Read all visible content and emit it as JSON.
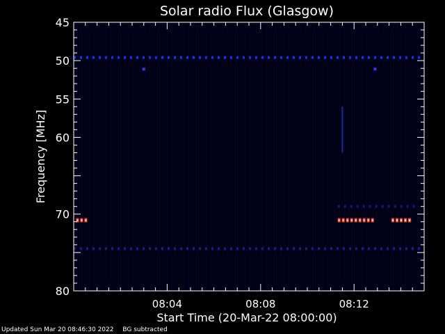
{
  "chart_data": {
    "type": "heatmap",
    "title": "Solar radio Flux (Glasgow)",
    "xlabel": "Start Time (20-Mar-22 08:00:00)",
    "ylabel": "Frequency [MHz]",
    "x_unit": "minutes after 08:00:00",
    "xlim": [
      0,
      15
    ],
    "ylim": [
      45,
      80
    ],
    "y_scale": "reversed (low frequency at top)",
    "x_ticks": [
      {
        "value": 4,
        "label": "08:04"
      },
      {
        "value": 8,
        "label": "08:08"
      },
      {
        "value": 12,
        "label": "08:12"
      }
    ],
    "y_ticks": [
      {
        "value": 45,
        "label": "45"
      },
      {
        "value": 50,
        "label": "50"
      },
      {
        "value": 55,
        "label": "55"
      },
      {
        "value": 60,
        "label": "60"
      },
      {
        "value": 70,
        "label": "70"
      },
      {
        "value": 80,
        "label": "80"
      }
    ],
    "background_color": "#000018",
    "features": [
      {
        "kind": "band",
        "frequency": 49.6,
        "x_range": [
          0,
          15
        ],
        "color": "#1a2bff",
        "intensity": "moderate"
      },
      {
        "kind": "band",
        "frequency": 70.8,
        "x_range": [
          0.1,
          0.6
        ],
        "color": "#ff3a2a",
        "intensity": "high"
      },
      {
        "kind": "band",
        "frequency": 70.8,
        "x_range": [
          11.3,
          12.9
        ],
        "color": "#ff3a2a",
        "intensity": "high"
      },
      {
        "kind": "band",
        "frequency": 70.8,
        "x_range": [
          13.6,
          14.5
        ],
        "color": "#ff3a2a",
        "intensity": "high"
      },
      {
        "kind": "band",
        "frequency": 74.5,
        "x_range": [
          0,
          15
        ],
        "color": "#14208a",
        "intensity": "low"
      },
      {
        "kind": "band",
        "frequency": 69.0,
        "x_range": [
          11.3,
          14.8
        ],
        "color": "#10187a",
        "intensity": "low"
      },
      {
        "kind": "dot",
        "frequency": 51.1,
        "x": 3.0,
        "color": "#2a3cff"
      },
      {
        "kind": "dot",
        "frequency": 51.1,
        "x": 12.9,
        "color": "#2a3cff"
      },
      {
        "kind": "streak",
        "frequency_range": [
          56,
          62
        ],
        "x": 11.5,
        "color": "#1a2aa0"
      }
    ]
  },
  "footer": {
    "updated": "Updated Sun Mar 20 08:46:30 2022",
    "note": "BG subtracted"
  },
  "colors": {
    "axes": "#ffffff",
    "text": "#ffffff"
  }
}
